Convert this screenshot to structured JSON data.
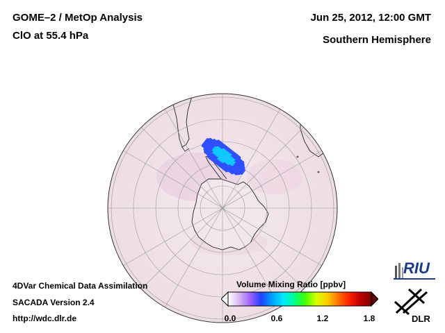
{
  "header": {
    "title_line1": "GOME–2 / MetOp Analysis",
    "title_line2": "ClO at 55.4 hPa",
    "date": "Jun 25, 2012, 12:00 GMT",
    "region": "Southern Hemisphere"
  },
  "footer": {
    "line1": "4DVar Chemical Data Assimilation",
    "line2": "SACADA Version 2.4",
    "url": "http://wdc.dlr.de"
  },
  "colorbar": {
    "title": "Volume Mixing Ratio [ppbv]",
    "ticks": [
      "0.0",
      "0.6",
      "1.2",
      "1.8"
    ],
    "min": 0.0,
    "max": 1.8,
    "stops": [
      "#ffffff",
      "#d8b8f0",
      "#a060ff",
      "#2040ff",
      "#00a0ff",
      "#00e8ff",
      "#00ff90",
      "#40ff00",
      "#d8ff00",
      "#ffd000",
      "#ff7000",
      "#ff2000",
      "#c00000",
      "#800000"
    ]
  },
  "logos": {
    "riu": "RIU",
    "dlr": "DLR"
  },
  "map": {
    "projection": "orthographic, south polar",
    "land_fill": "#f0dfe6",
    "ocean_fill": "#f2e4ea",
    "clo_max_region": "Antarctic Peninsula / Weddell Sea",
    "clo_color_core": "#10c8ff",
    "clo_color_edge": "#3050ff"
  }
}
